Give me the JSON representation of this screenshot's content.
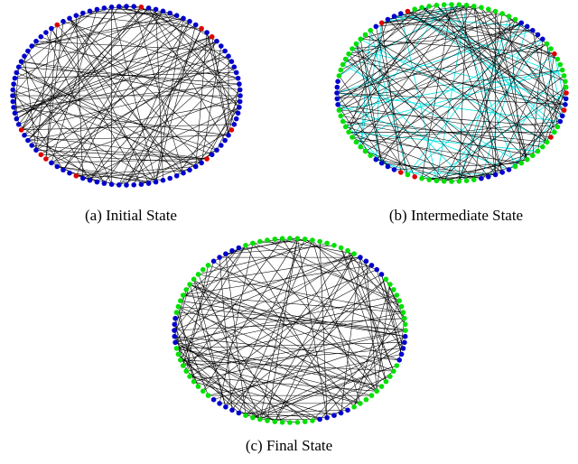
{
  "figure": {
    "colors": {
      "edge": "#000000",
      "highlight_edge": "#00e5e5",
      "node_blue": "#0000cc",
      "node_red": "#dd0000",
      "node_green": "#00e000"
    },
    "panels": [
      {
        "caption": "(a) Initial State",
        "node_count": 96,
        "palette": [
          "node_blue"
        ],
        "accent": "node_red",
        "accent_count": 10,
        "edge_count": 140,
        "highlight_edge_count": 0
      },
      {
        "caption": "(b) Intermediate State",
        "node_count": 96,
        "palette": [
          "node_green",
          "node_blue"
        ],
        "accent": "node_red",
        "accent_count": 8,
        "edge_count": 120,
        "highlight_edge_count": 45
      },
      {
        "caption": "(c) Final State",
        "node_count": 96,
        "palette": [
          "node_green",
          "node_blue"
        ],
        "accent": null,
        "accent_count": 0,
        "edge_count": 140,
        "highlight_edge_count": 0
      }
    ]
  }
}
